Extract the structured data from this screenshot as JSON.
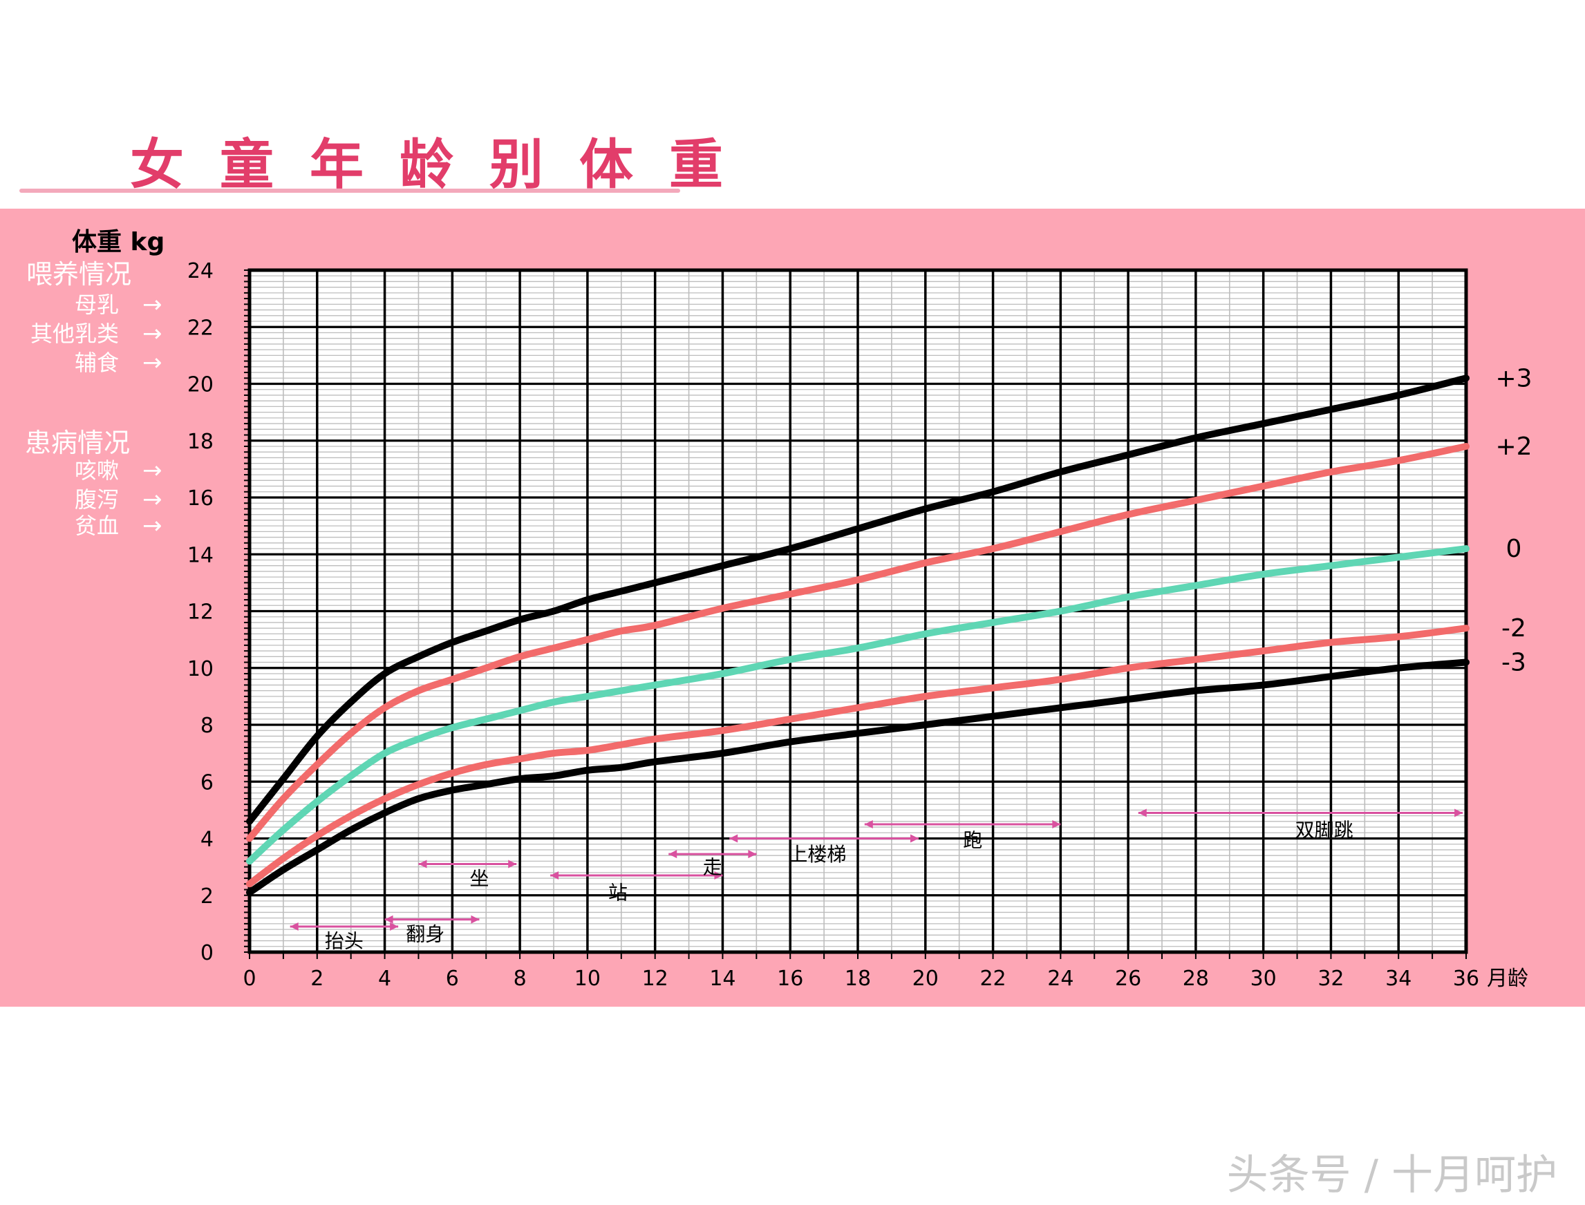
{
  "page": {
    "title": "女童年龄别体重",
    "watermark": "头条号 / 十月呵护"
  },
  "sidebar": {
    "weight_label": "体重 kg",
    "feeding_heading": "喂养情况",
    "feeding_items": [
      "母乳",
      "其他乳类",
      "辅食"
    ],
    "illness_heading": "患病情况",
    "illness_items": [
      "咳嗽",
      "腹泻",
      "贫血"
    ],
    "arrow_glyph": "→"
  },
  "colors": {
    "panel": "#fda6b5",
    "title": "#e23d6a",
    "grid_bg": "#ffffff",
    "fine_grid": "#bdbdbd",
    "major_grid": "#000000",
    "milestone": "#d9519f"
  },
  "chart_data": {
    "type": "line",
    "xlabel": "月龄",
    "ylabel": "体重 kg",
    "xlim": [
      0,
      36
    ],
    "ylim": [
      0,
      24
    ],
    "x_ticks": [
      0,
      2,
      4,
      6,
      8,
      10,
      12,
      14,
      16,
      18,
      20,
      22,
      24,
      26,
      28,
      30,
      32,
      34,
      36
    ],
    "y_ticks": [
      0,
      2,
      4,
      6,
      8,
      10,
      12,
      14,
      16,
      18,
      20,
      22,
      24
    ],
    "grid": true,
    "x": [
      0,
      1,
      2,
      3,
      4,
      5,
      6,
      7,
      8,
      9,
      10,
      11,
      12,
      14,
      16,
      18,
      20,
      22,
      24,
      26,
      28,
      30,
      32,
      34,
      36
    ],
    "series": [
      {
        "name": "+3",
        "color": "#000000",
        "values": [
          4.6,
          6.1,
          7.6,
          8.8,
          9.8,
          10.4,
          10.9,
          11.3,
          11.7,
          12.0,
          12.4,
          12.7,
          13.0,
          13.6,
          14.2,
          14.9,
          15.6,
          16.2,
          16.9,
          17.5,
          18.1,
          18.6,
          19.1,
          19.6,
          20.2
        ]
      },
      {
        "name": "+2",
        "color": "#f26b6b",
        "values": [
          4.0,
          5.4,
          6.6,
          7.7,
          8.6,
          9.2,
          9.6,
          10.0,
          10.4,
          10.7,
          11.0,
          11.3,
          11.5,
          12.1,
          12.6,
          13.1,
          13.7,
          14.2,
          14.8,
          15.4,
          15.9,
          16.4,
          16.9,
          17.3,
          17.8
        ]
      },
      {
        "name": "0",
        "color": "#5fd6b4",
        "values": [
          3.2,
          4.3,
          5.3,
          6.2,
          7.0,
          7.5,
          7.9,
          8.2,
          8.5,
          8.8,
          9.0,
          9.2,
          9.4,
          9.8,
          10.3,
          10.7,
          11.2,
          11.6,
          12.0,
          12.5,
          12.9,
          13.3,
          13.6,
          13.9,
          14.2
        ]
      },
      {
        "name": "-2",
        "color": "#f26b6b",
        "values": [
          2.4,
          3.3,
          4.1,
          4.8,
          5.4,
          5.9,
          6.3,
          6.6,
          6.8,
          7.0,
          7.1,
          7.3,
          7.5,
          7.8,
          8.2,
          8.6,
          9.0,
          9.3,
          9.6,
          10.0,
          10.3,
          10.6,
          10.9,
          11.1,
          11.4
        ]
      },
      {
        "name": "-3",
        "color": "#000000",
        "values": [
          2.1,
          2.9,
          3.6,
          4.3,
          4.9,
          5.4,
          5.7,
          5.9,
          6.1,
          6.2,
          6.4,
          6.5,
          6.7,
          7.0,
          7.4,
          7.7,
          8.0,
          8.3,
          8.6,
          8.9,
          9.2,
          9.4,
          9.7,
          10.0,
          10.2
        ]
      }
    ],
    "milestones": [
      {
        "label": "抬头",
        "x_start": 1.2,
        "x_end": 4.4,
        "y": 0.9,
        "label_x": 2.8,
        "label_y": 0.4
      },
      {
        "label": "翻身",
        "x_start": 4.0,
        "x_end": 6.8,
        "y": 1.15,
        "label_x": 5.2,
        "label_y": 0.65
      },
      {
        "label": "坐",
        "x_start": 5.0,
        "x_end": 7.9,
        "y": 3.1,
        "label_x": 6.8,
        "label_y": 2.6
      },
      {
        "label": "站",
        "x_start": 8.9,
        "x_end": 14.0,
        "y": 2.7,
        "label_x": 10.9,
        "label_y": 2.1
      },
      {
        "label": "走",
        "x_start": 12.4,
        "x_end": 15.0,
        "y": 3.45,
        "label_x": 13.7,
        "label_y": 3.0
      },
      {
        "label": "上楼梯",
        "x_start": 14.2,
        "x_end": 19.8,
        "y": 4.0,
        "label_x": 16.8,
        "label_y": 3.45
      },
      {
        "label": "跑",
        "x_start": 18.2,
        "x_end": 24.0,
        "y": 4.5,
        "label_x": 21.4,
        "label_y": 3.95
      },
      {
        "label": "双脚跳",
        "x_start": 26.3,
        "x_end": 35.9,
        "y": 4.9,
        "label_x": 31.8,
        "label_y": 4.3
      }
    ]
  }
}
